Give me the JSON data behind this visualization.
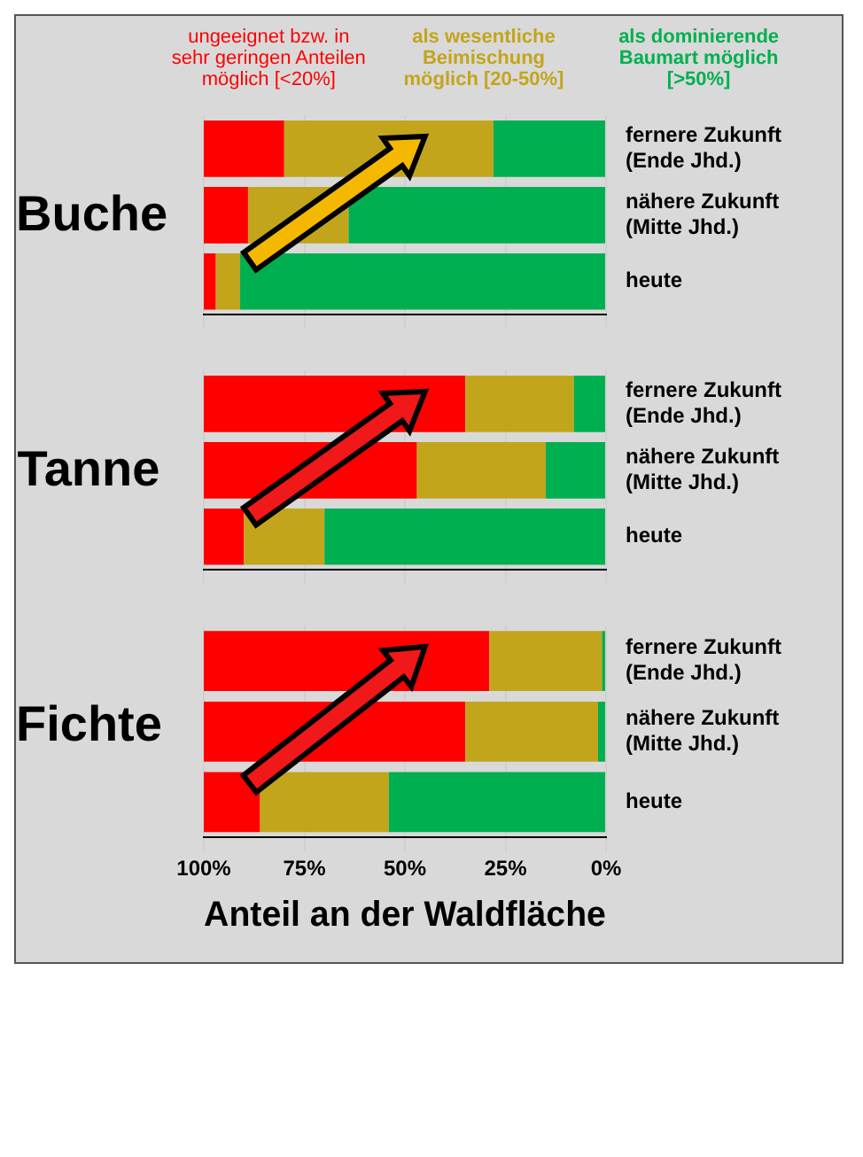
{
  "chart_data": [
    {
      "type": "bar",
      "title": "Buche",
      "orientation": "horizontal",
      "stacked": true,
      "categories": [
        "fernere Zukunft (Ende Jhd.)",
        "nähere Zukunft (Mitte Jhd.)",
        "heute"
      ],
      "xlim": [
        100,
        0
      ],
      "xticks": [
        {
          "value": 100,
          "label": null
        },
        {
          "value": 75,
          "label": null
        },
        {
          "value": 50,
          "label": null
        },
        {
          "value": 25,
          "label": null
        },
        {
          "value": 0,
          "label": null
        }
      ],
      "grid": "x",
      "tick_labels": "y",
      "series": [
        {
          "name": "als dominierende Baumart möglich [>50%]",
          "color": "#00b050",
          "values": [
            28,
            64,
            91
          ]
        },
        {
          "name": "als wesentliche Beimischung möglich [20-50%]",
          "color": "#c3a51b",
          "values": [
            52,
            25,
            6
          ]
        },
        {
          "name": "ungeeignet bzw. in sehr geringen Anteilen möglich [<20%]",
          "color": "#ff0000",
          "values": [
            20,
            11,
            3
          ]
        }
      ]
    },
    {
      "type": "bar",
      "title": "Tanne",
      "orientation": "horizontal",
      "stacked": true,
      "categories": [
        "fernere Zukunft (Ende Jhd.)",
        "nähere Zukunft (Mitte Jhd.)",
        "heute"
      ],
      "xlim": [
        100,
        0
      ],
      "xticks": [
        {
          "value": 100,
          "label": null
        },
        {
          "value": 75,
          "label": null
        },
        {
          "value": 50,
          "label": null
        },
        {
          "value": 25,
          "label": null
        },
        {
          "value": 0,
          "label": null
        }
      ],
      "grid": "x",
      "tick_labels": "y",
      "series": [
        {
          "color": "#00b050",
          "values": [
            8,
            15,
            70
          ]
        },
        {
          "color": "#c3a51b",
          "values": [
            27,
            32,
            20
          ]
        },
        {
          "color": "#ff0000",
          "values": [
            65,
            53,
            10
          ]
        }
      ]
    },
    {
      "type": "bar",
      "title": "Fichte",
      "orientation": "horizontal",
      "stacked": true,
      "categories": [
        "fernere Zukunft (Ende Jhd.)",
        "nähere Zukunft (Mitte Jhd.)",
        "heute"
      ],
      "xlim": [
        100,
        0
      ],
      "xticks": [
        {
          "value": 100,
          "label": "100%"
        },
        {
          "value": 75,
          "label": "75%"
        },
        {
          "value": 50,
          "label": "50%"
        },
        {
          "value": 25,
          "label": "25%"
        },
        {
          "value": 0,
          "label": "0%"
        }
      ],
      "grid": "x",
      "xlabel": "Anteil an der Waldfläche",
      "series": [
        {
          "color": "#00b050",
          "values": [
            1,
            2,
            54
          ]
        },
        {
          "color": "#c3a51b",
          "values": [
            28,
            33,
            32
          ]
        },
        {
          "color": "#ff0000",
          "values": [
            71,
            65,
            14
          ]
        }
      ]
    }
  ]
}
